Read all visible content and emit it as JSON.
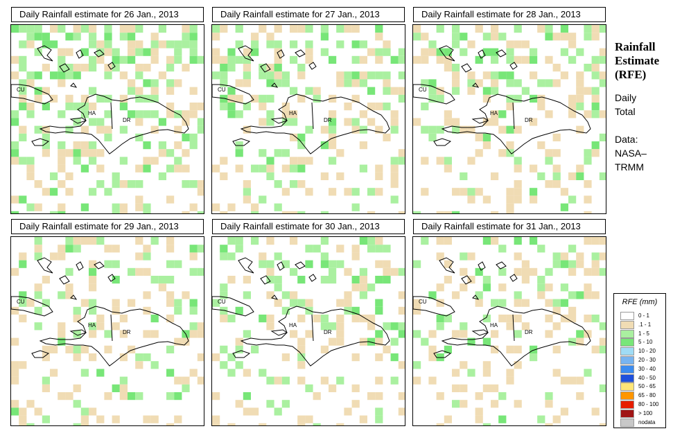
{
  "side_panel": {
    "title_lines": [
      "Rainfall",
      "Estimate",
      "(RFE)"
    ],
    "period_lines": [
      "Daily",
      "Total"
    ],
    "source_lines": [
      "Data:",
      "NASA–",
      "TRMM"
    ]
  },
  "map_labels": {
    "cuba": "CU",
    "haiti": "HA",
    "dominican_republic": "DR"
  },
  "panels": [
    {
      "title": "Daily Rainfall estimate for  26 Jan., 2013",
      "seed": 26,
      "wet": 0.7
    },
    {
      "title": "Daily Rainfall estimate for  27 Jan., 2013",
      "seed": 27,
      "wet": 0.6
    },
    {
      "title": "Daily Rainfall estimate for  28 Jan., 2013",
      "seed": 28,
      "wet": 0.45
    },
    {
      "title": "Daily Rainfall estimate for  29 Jan., 2013",
      "seed": 29,
      "wet": 0.35
    },
    {
      "title": "Daily Rainfall estimate for  30 Jan., 2013",
      "seed": 30,
      "wet": 0.45
    },
    {
      "title": "Daily Rainfall estimate for  31 Jan., 2013",
      "seed": 31,
      "wet": 0.3
    }
  ],
  "legend": {
    "title": "RFE (mm)",
    "items": [
      {
        "label": "0 - 1",
        "color": "#ffffff"
      },
      {
        "label": ".1 - 1",
        "color": "#f0dcb4"
      },
      {
        "label": "1 - 5",
        "color": "#aaf0a0"
      },
      {
        "label": "5 - 10",
        "color": "#78e678"
      },
      {
        "label": "10 - 20",
        "color": "#a0dcf5"
      },
      {
        "label": "20 - 30",
        "color": "#78b4f0"
      },
      {
        "label": "30 - 40",
        "color": "#3c8cf0"
      },
      {
        "label": "40 - 50",
        "color": "#1e50dc"
      },
      {
        "label": "50 - 65",
        "color": "#ffe678"
      },
      {
        "label": "65 - 80",
        "color": "#ff9600"
      },
      {
        "label": "80 - 100",
        "color": "#e61e00"
      },
      {
        "label": "> 100",
        "color": "#a01414"
      },
      {
        "label": "nodata",
        "color": "#c8c8c8"
      }
    ]
  }
}
